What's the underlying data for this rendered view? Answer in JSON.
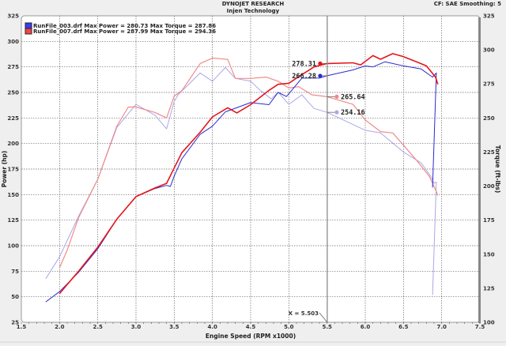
{
  "header": {
    "company": "DYNOJET RESEARCH",
    "subtitle": "Injen Technology",
    "settings": "CF: SAE  Smoothing: 5"
  },
  "colors": {
    "run003_power": "#2b2bd0",
    "run003_torque": "#a8a8e6",
    "run007_power": "#e3151b",
    "run007_torque": "#f08a8a",
    "cursor": "#8a8a8a"
  },
  "chart_data": {
    "type": "line",
    "xlabel": "Engine Speed (RPM x1000)",
    "ylabel": "Power (hp)",
    "y2label": "Torque (ft-lbs)",
    "xlim": [
      1.5,
      7.5
    ],
    "ylim": [
      25,
      325
    ],
    "y2lim": [
      100,
      325
    ],
    "xticks": [
      "1.5",
      "2.0",
      "2.5",
      "3.0",
      "3.5",
      "4.0",
      "4.5",
      "5.0",
      "5.5",
      "6.0",
      "6.5",
      "7.0",
      "7.5"
    ],
    "yticks": [
      "25",
      "50",
      "75",
      "100",
      "125",
      "150",
      "175",
      "200",
      "225",
      "250",
      "275",
      "300",
      "325"
    ],
    "y2ticks": [
      "100",
      "125",
      "150",
      "175",
      "200",
      "225",
      "250",
      "275",
      "300",
      "325"
    ],
    "grid": true,
    "legend": {
      "position": "top-left",
      "entries": [
        "RunFile_003.drf Max Power = 280.73 Max Torque = 287.86",
        "RunFile_007.drf Max Power = 287.99 Max Torque = 294.36"
      ]
    },
    "cursor": {
      "x": 5.503,
      "label": "X = 5.503"
    },
    "series": [
      {
        "name": "RunFile_003.drf",
        "quantity": "power",
        "axis": "left",
        "x": [
          1.82,
          2.0,
          2.25,
          2.5,
          2.75,
          3.0,
          3.25,
          3.4,
          3.45,
          3.5,
          3.6,
          3.84,
          4.0,
          4.17,
          4.5,
          4.74,
          4.86,
          4.97,
          5.17,
          5.4,
          5.5,
          5.84,
          6.0,
          6.1,
          6.26,
          6.5,
          6.73,
          6.88,
          6.93,
          6.88
        ],
        "y": [
          45,
          55,
          74,
          97,
          126,
          148,
          156,
          159,
          158,
          168,
          185,
          209,
          217,
          231,
          240,
          238,
          250,
          246,
          264,
          264,
          266.28,
          272,
          276,
          275,
          280,
          276,
          273,
          265,
          269,
          157
        ]
      },
      {
        "name": "RunFile_003.drf",
        "quantity": "torque",
        "axis": "right",
        "x": [
          1.82,
          2.0,
          2.25,
          2.5,
          2.75,
          3.0,
          3.25,
          3.4,
          3.5,
          3.55,
          3.84,
          4.0,
          4.17,
          4.3,
          4.5,
          4.63,
          4.77,
          4.86,
          5.0,
          5.17,
          5.33,
          5.5,
          6.0,
          6.2,
          6.5,
          6.73,
          6.86,
          6.9,
          6.93,
          6.88
        ],
        "y": [
          132,
          148,
          178,
          205,
          243,
          260,
          252,
          242,
          262,
          267,
          283,
          277,
          287,
          279,
          277,
          270,
          264,
          269,
          260,
          267,
          257,
          254.16,
          241,
          239,
          225,
          217,
          207,
          202,
          203,
          120
        ]
      },
      {
        "name": "RunFile_007.drf",
        "quantity": "power",
        "axis": "left",
        "x": [
          2.0,
          2.1,
          2.25,
          2.5,
          2.75,
          3.0,
          3.25,
          3.4,
          3.5,
          3.6,
          3.84,
          4.0,
          4.2,
          4.32,
          4.5,
          4.74,
          4.86,
          5.0,
          5.13,
          5.33,
          5.5,
          5.84,
          5.94,
          6.1,
          6.2,
          6.36,
          6.5,
          6.67,
          6.8,
          6.92,
          6.95
        ],
        "y": [
          53,
          62,
          75,
          98.5,
          126,
          148,
          156.5,
          161,
          176,
          191,
          211,
          226,
          235,
          230,
          238,
          252,
          258,
          259,
          265.5,
          275,
          278.31,
          279,
          277,
          286,
          282.5,
          288,
          285,
          280,
          276,
          265,
          258
        ]
      },
      {
        "name": "RunFile_007.drf",
        "quantity": "torque",
        "axis": "right",
        "x": [
          2.0,
          2.1,
          2.25,
          2.5,
          2.75,
          2.9,
          3.0,
          3.25,
          3.4,
          3.5,
          3.6,
          3.84,
          4.0,
          4.2,
          4.3,
          4.5,
          4.7,
          4.86,
          5.0,
          5.13,
          5.3,
          5.5,
          5.84,
          6.0,
          6.2,
          6.36,
          6.5,
          6.67,
          6.84,
          6.93,
          6.95
        ],
        "y": [
          140,
          153,
          177,
          205,
          244,
          258,
          258,
          254,
          250,
          266,
          270,
          290,
          294,
          293,
          279,
          279,
          280,
          277,
          272,
          273,
          267,
          265.64,
          260,
          248.5,
          240,
          239,
          230,
          219,
          207,
          196,
          193
        ]
      }
    ],
    "annotations": [
      {
        "series": "RunFile_007.drf power",
        "x": 5.503,
        "value": "278.31"
      },
      {
        "series": "RunFile_003.drf power",
        "x": 5.503,
        "value": "266.28"
      },
      {
        "series": "RunFile_007.drf torque",
        "x": 5.503,
        "value": "265.64"
      },
      {
        "series": "RunFile_003.drf torque",
        "x": 5.503,
        "value": "254.16"
      }
    ]
  }
}
